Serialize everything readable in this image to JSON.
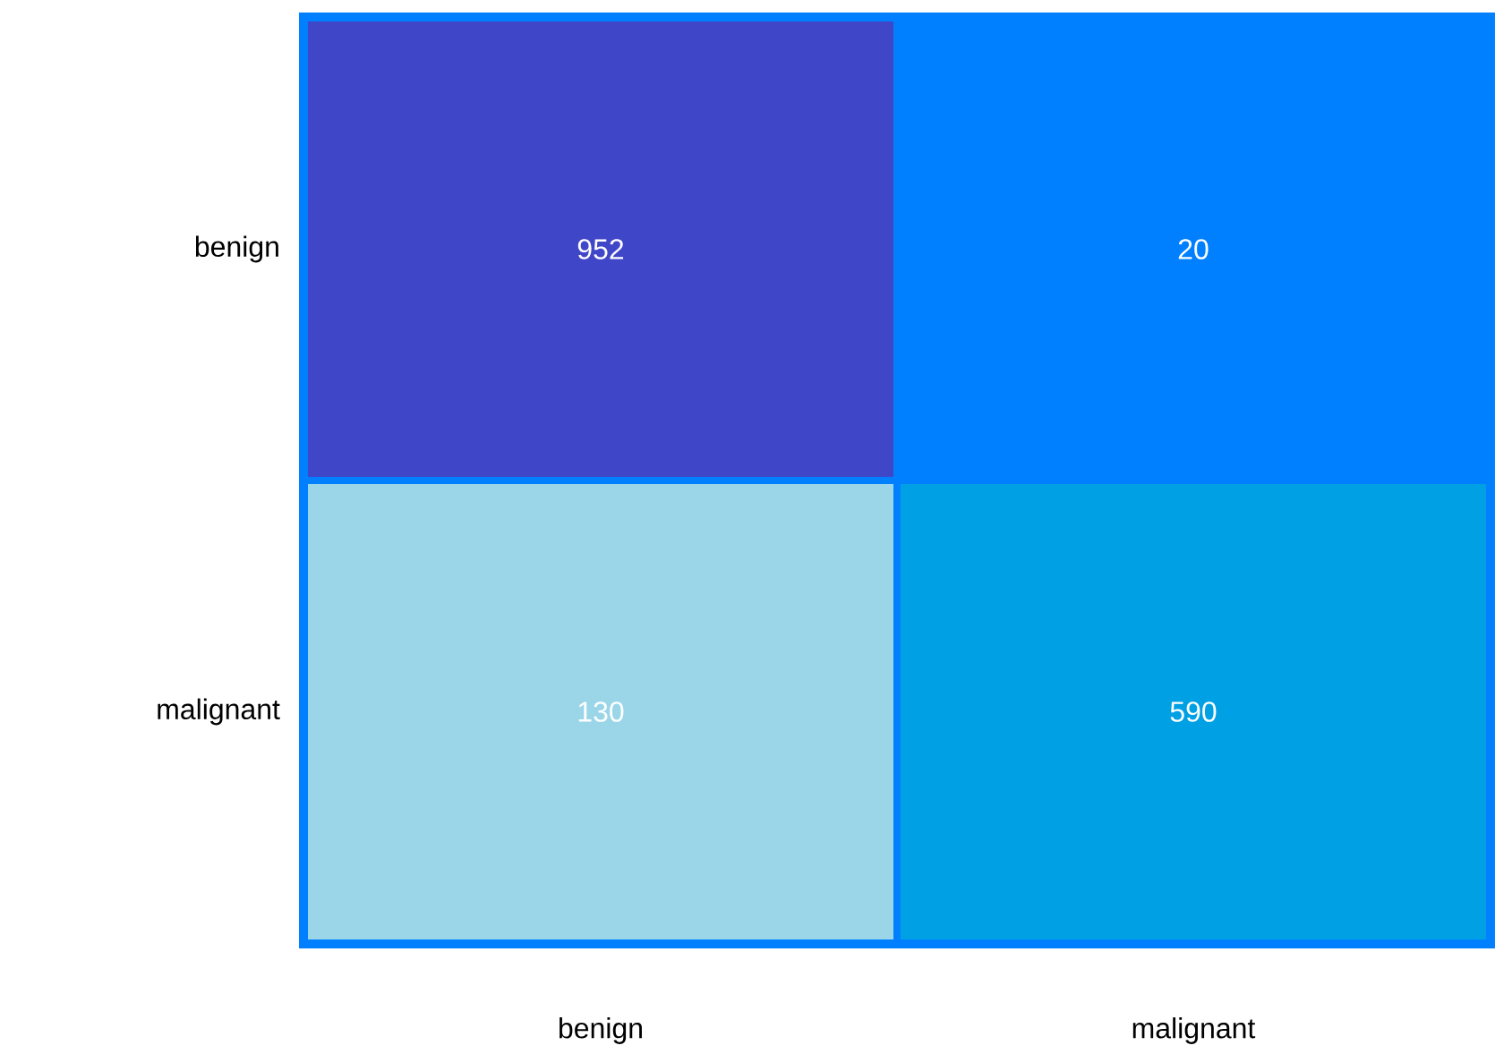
{
  "chart_data": {
    "type": "heatmap",
    "categories": [
      "benign",
      "malignant"
    ],
    "y_categories": [
      "benign",
      "malignant"
    ],
    "cells": [
      [
        952,
        20
      ],
      [
        130,
        590
      ]
    ],
    "colors": [
      "#4046c8",
      "#0080ff",
      "#9ad6e8",
      "#00a0e4"
    ],
    "data_labels": true
  }
}
